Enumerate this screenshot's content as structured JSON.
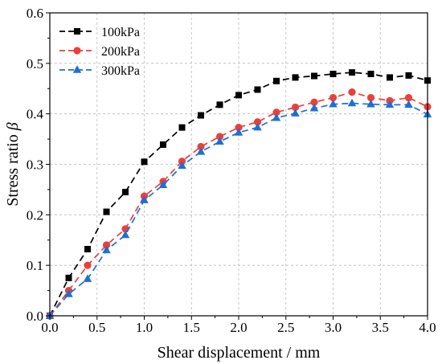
{
  "chart_data": {
    "type": "line",
    "xlabel": "Shear displacement / mm",
    "ylabel_text": "Stress ratio ",
    "ylabel_symbol": "β",
    "xlim": [
      0,
      4.0
    ],
    "ylim": [
      0,
      0.6
    ],
    "xticks": [
      "0.0",
      "0.5",
      "1.0",
      "1.5",
      "2.0",
      "2.5",
      "3.0",
      "3.5",
      "4.0"
    ],
    "yticks": [
      "0.0",
      "0.1",
      "0.2",
      "0.3",
      "0.4",
      "0.5",
      "0.6"
    ],
    "grid": true,
    "legend_position": "top-left",
    "x": [
      0.0,
      0.2,
      0.4,
      0.6,
      0.8,
      1.0,
      1.2,
      1.4,
      1.6,
      1.8,
      2.0,
      2.2,
      2.4,
      2.6,
      2.8,
      3.0,
      3.2,
      3.4,
      3.6,
      3.8,
      4.0
    ],
    "series": [
      {
        "name": "100kPa",
        "color": "#000000",
        "marker": "square",
        "values": [
          0.0,
          0.075,
          0.132,
          0.206,
          0.245,
          0.305,
          0.339,
          0.373,
          0.397,
          0.418,
          0.437,
          0.448,
          0.465,
          0.472,
          0.475,
          0.479,
          0.482,
          0.479,
          0.472,
          0.476,
          0.466
        ]
      },
      {
        "name": "200kPa",
        "color": "#e8413c",
        "marker": "circle",
        "values": [
          0.0,
          0.05,
          0.1,
          0.14,
          0.172,
          0.237,
          0.266,
          0.306,
          0.335,
          0.355,
          0.373,
          0.384,
          0.403,
          0.413,
          0.423,
          0.432,
          0.443,
          0.432,
          0.426,
          0.432,
          0.414
        ]
      },
      {
        "name": "300kPa",
        "color": "#1c6fd8",
        "marker": "triangle",
        "values": [
          0.0,
          0.043,
          0.073,
          0.13,
          0.16,
          0.229,
          0.259,
          0.297,
          0.325,
          0.345,
          0.363,
          0.373,
          0.392,
          0.401,
          0.411,
          0.419,
          0.421,
          0.419,
          0.418,
          0.418,
          0.399
        ]
      }
    ]
  }
}
